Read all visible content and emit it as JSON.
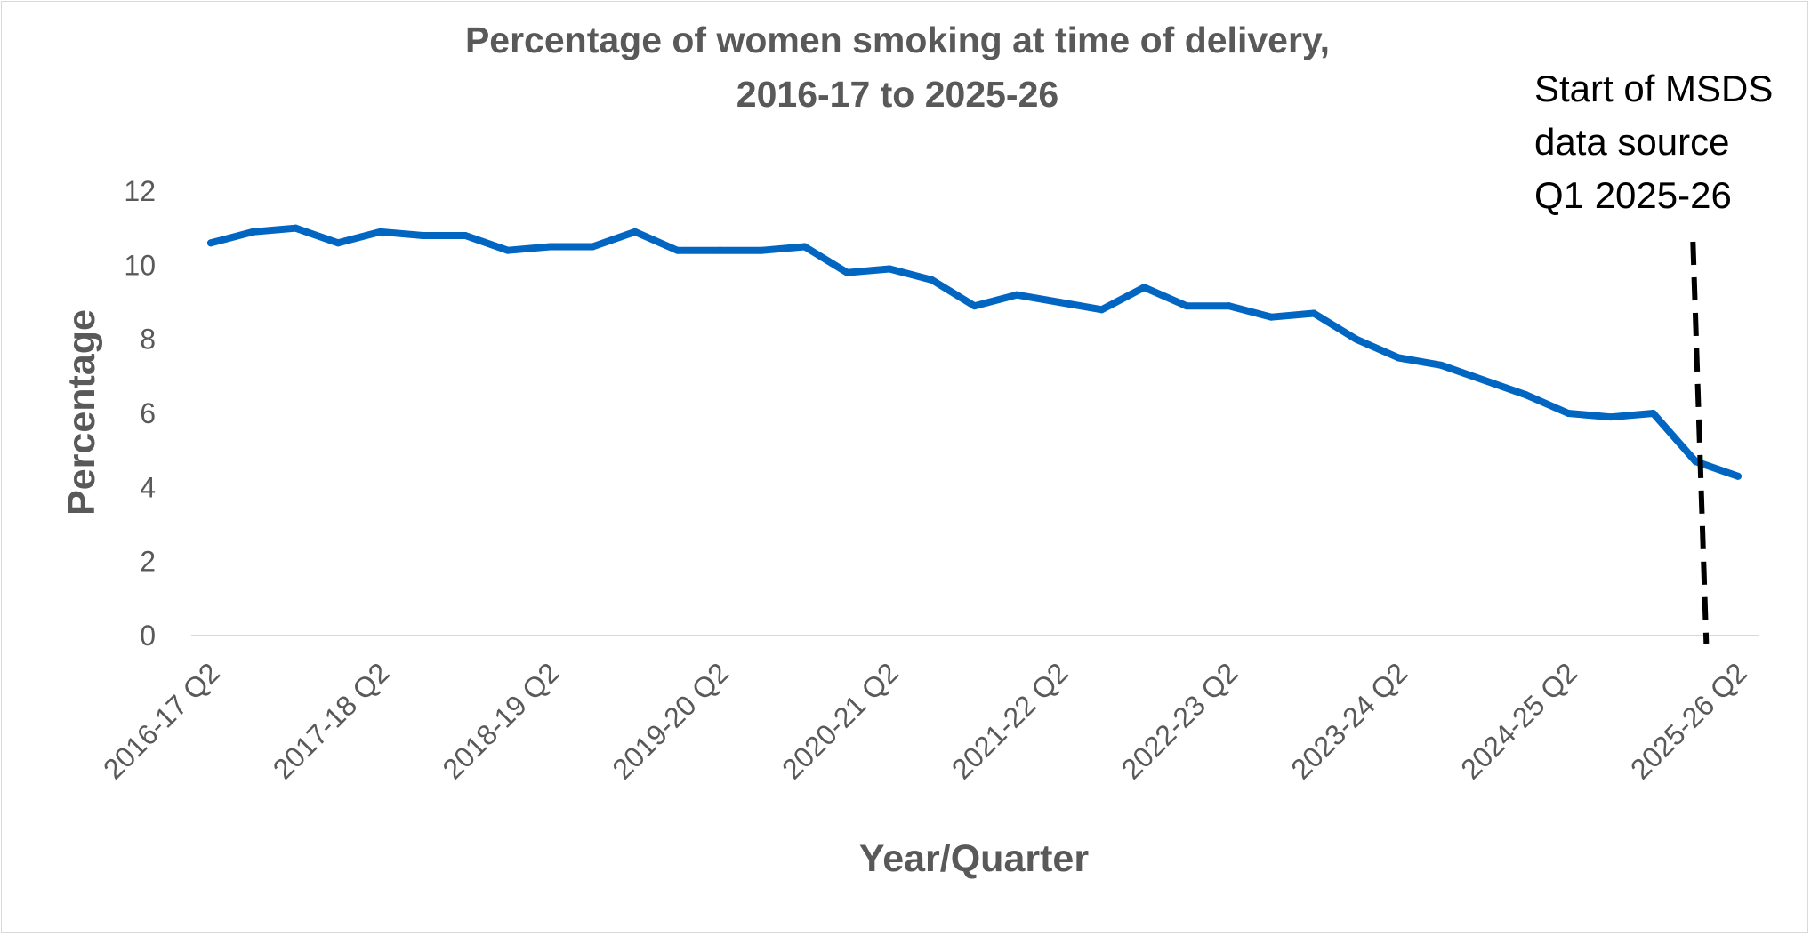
{
  "chart_data": {
    "type": "line",
    "title": "Percentage of women smoking at time of delivery,",
    "subtitle": "2016-17 to 2025-26",
    "xlabel": "Year/Quarter",
    "ylabel": "Percentage",
    "ylim": [
      0,
      12
    ],
    "yticks": [
      "0",
      "2",
      "4",
      "6",
      "8",
      "10",
      "12"
    ],
    "grid": false,
    "legend": "none",
    "x_tick_labels": [
      "2016-17 Q2",
      "2017-18 Q2",
      "2018-19 Q2",
      "2019-20 Q2",
      "2020-21 Q2",
      "2021-22 Q2",
      "2022-23 Q2",
      "2023-24 Q2",
      "2024-25 Q2",
      "2025-26 Q2"
    ],
    "x": [
      "2016-17 Q2",
      "2016-17 Q3",
      "2016-17 Q4",
      "2017-18 Q1",
      "2017-18 Q2",
      "2017-18 Q3",
      "2017-18 Q4",
      "2018-19 Q1",
      "2018-19 Q2",
      "2018-19 Q3",
      "2018-19 Q4",
      "2019-20 Q1",
      "2019-20 Q2",
      "2019-20 Q3",
      "2019-20 Q4",
      "2020-21 Q1",
      "2020-21 Q2",
      "2020-21 Q3",
      "2020-21 Q4",
      "2021-22 Q1",
      "2021-22 Q2",
      "2021-22 Q3",
      "2021-22 Q4",
      "2022-23 Q1",
      "2022-23 Q2",
      "2022-23 Q3",
      "2022-23 Q4",
      "2023-24 Q1",
      "2023-24 Q2",
      "2023-24 Q3",
      "2023-24 Q4",
      "2024-25 Q1",
      "2024-25 Q2",
      "2024-25 Q3",
      "2024-25 Q4",
      "2025-26 Q1",
      "2025-26 Q2"
    ],
    "series": [
      {
        "values": [
          10.6,
          10.9,
          11.0,
          10.6,
          10.9,
          10.8,
          10.8,
          10.4,
          10.5,
          10.5,
          10.9,
          10.4,
          10.4,
          10.4,
          10.5,
          9.8,
          9.9,
          9.6,
          8.9,
          9.2,
          9.0,
          8.8,
          9.4,
          8.9,
          8.9,
          8.6,
          8.7,
          8.0,
          7.5,
          7.3,
          6.9,
          6.5,
          6.0,
          5.9,
          6.0,
          4.7,
          4.3
        ],
        "color": "#0066c2"
      }
    ],
    "annotation": {
      "lines": [
        "Start of MSDS",
        "data source",
        "Q1 2025-26"
      ],
      "marker_category": "2025-26 Q1",
      "style": "dashed"
    }
  },
  "colors": {
    "line": "#0066c2",
    "axis": "#d9d9d9",
    "text": "#595959",
    "annotation": "#000000"
  }
}
